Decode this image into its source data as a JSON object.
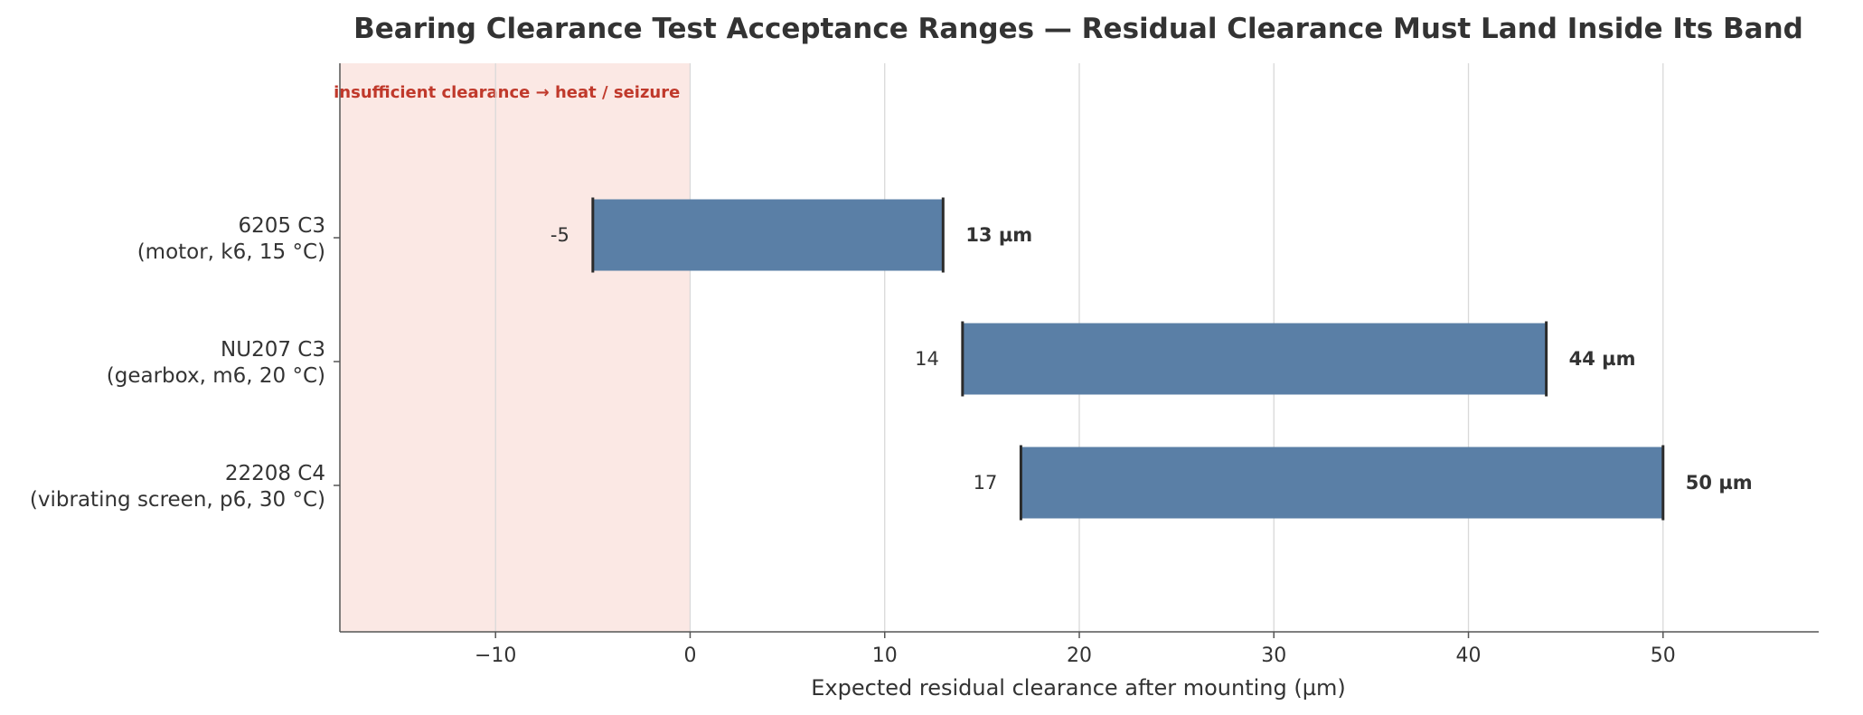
{
  "chart_data": {
    "type": "bar",
    "orientation": "horizontal-range",
    "title": "Bearing Clearance Test Acceptance Ranges — Residual Clearance Must Land Inside Its Band",
    "xlabel": "Expected residual clearance after mounting (µm)",
    "ylabel": "",
    "xlim": [
      -18,
      58
    ],
    "xticks": [
      -10,
      0,
      10,
      20,
      30,
      40,
      50
    ],
    "xtick_labels": [
      "−10",
      "0",
      "10",
      "20",
      "30",
      "40",
      "50"
    ],
    "grid": "vertical",
    "categories": [
      {
        "line1": "6205 C3",
        "line2": "(motor, k6, 15 °C)"
      },
      {
        "line1": "NU207 C3",
        "line2": "(gearbox, m6, 20 °C)"
      },
      {
        "line1": "22208 C4",
        "line2": "(vibrating screen, p6, 30 °C)"
      }
    ],
    "ranges": [
      {
        "low": -5,
        "high": 13,
        "low_label": "-5",
        "high_label": "13 µm"
      },
      {
        "low": 14,
        "high": 44,
        "low_label": "14",
        "high_label": "44 µm"
      },
      {
        "low": 17,
        "high": 50,
        "low_label": "17",
        "high_label": "50 µm"
      }
    ],
    "zones": [
      {
        "from": -18,
        "to": 0,
        "label": "insufficient clearance → heat / seizure"
      }
    ],
    "colors": {
      "bar": "#5a7fa6",
      "endcap": "#2b2b2b",
      "zone_fill": "#fbe8e4",
      "zone_text": "#c0392b",
      "grid": "#d9d9d9",
      "axis": "#555555"
    }
  }
}
